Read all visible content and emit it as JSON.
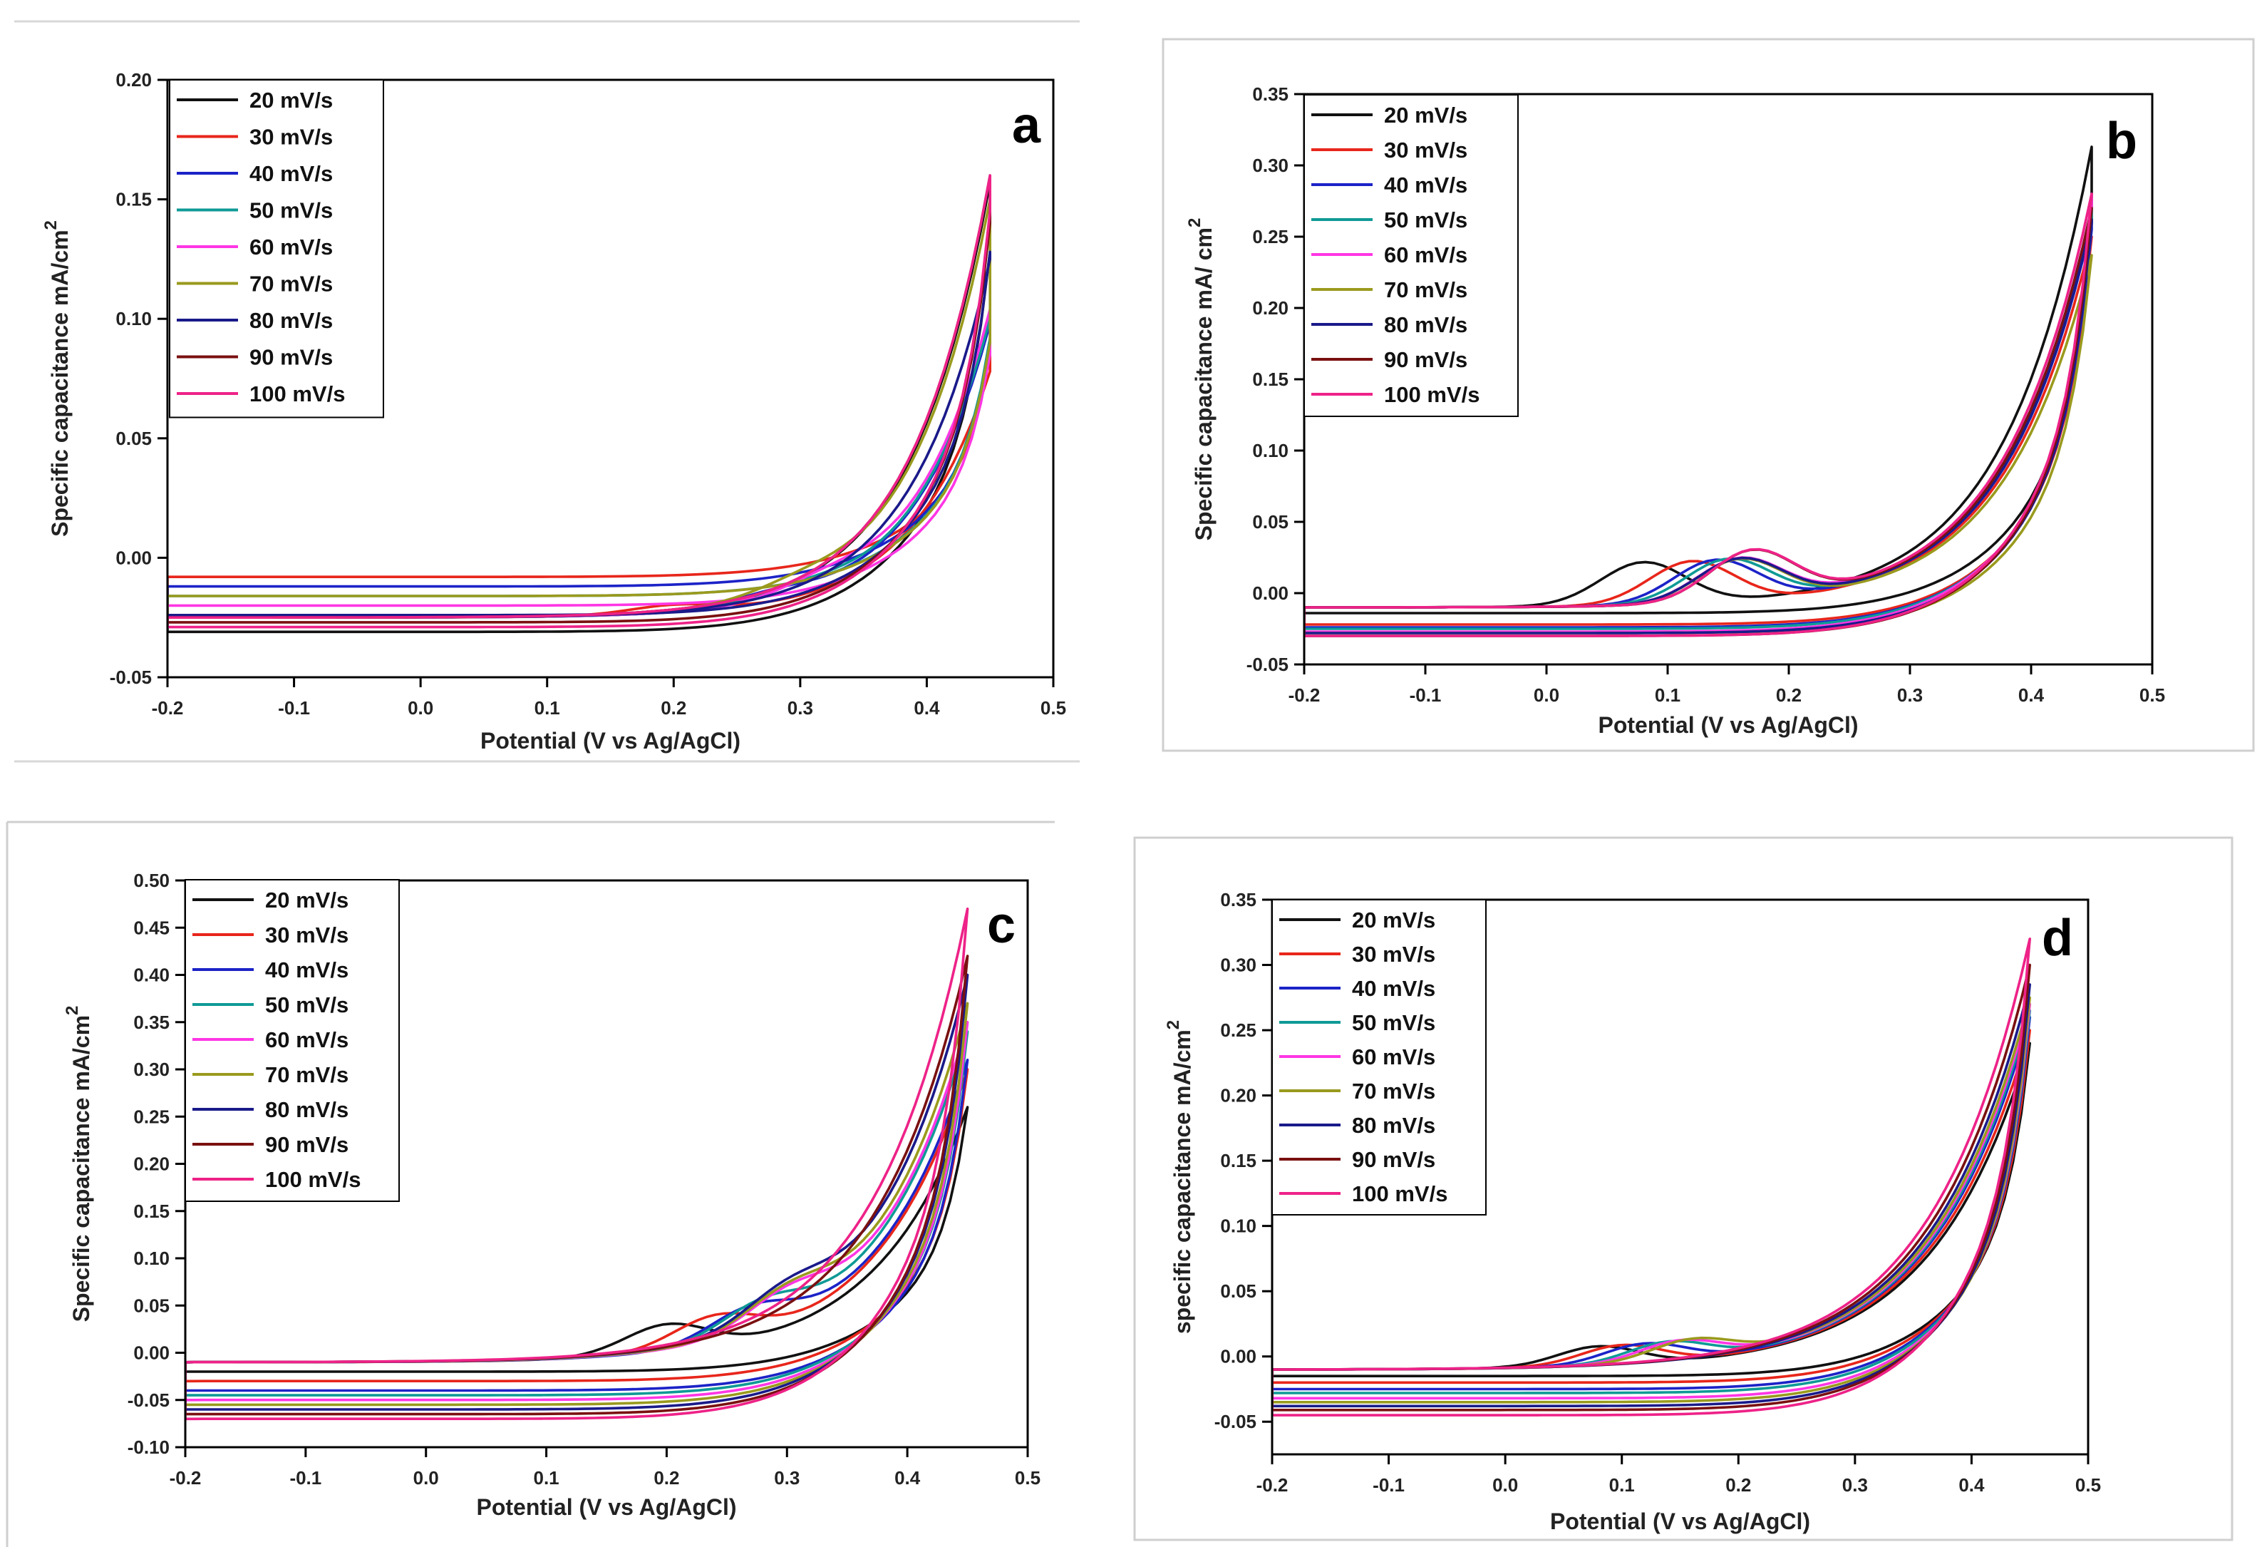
{
  "chart_data": [
    {
      "type": "line",
      "panel_label": "a",
      "xlabel": "Potential (V vs Ag/AgCl)",
      "ylabel": "Specific capacitance mA/cm",
      "ylabel_sup": "2",
      "xlim": [
        -0.2,
        0.5
      ],
      "ylim": [
        -0.05,
        0.2
      ],
      "xticks": [
        "-0.2",
        "-0.1",
        "0.0",
        "0.1",
        "0.2",
        "0.3",
        "0.4",
        "0.5"
      ],
      "yticks": [
        "-0.05",
        "0.00",
        "0.05",
        "0.10",
        "0.15",
        "0.20"
      ],
      "legend_position": "top-left",
      "legend": [
        "20 mV/s",
        "30 mV/s",
        "40 mV/s",
        "50 mV/s",
        "60 mV/s",
        "70 mV/s",
        "80 mV/s",
        "90 mV/s",
        "100 mV/s"
      ],
      "scan_rates_mV_s": [
        20,
        30,
        40,
        50,
        60,
        70,
        80,
        90,
        100
      ],
      "peak_current": [
        0.157,
        0.078,
        0.098,
        0.1,
        0.104,
        0.15,
        0.125,
        0.16,
        0.16
      ],
      "return_current": [
        0.128,
        0.085,
        0.09,
        0.092,
        0.085,
        0.09,
        0.128,
        0.14,
        0.145
      ],
      "cathodic_base": [
        -0.031,
        -0.008,
        -0.012,
        -0.016,
        -0.02,
        -0.016,
        -0.024,
        -0.027,
        -0.029
      ],
      "hump": [
        [
          0.0,
          0.0
        ],
        [
          0.2,
          0.0035
        ],
        [
          0.28,
          0.004
        ],
        [
          0.3,
          0.004
        ],
        [
          0.32,
          0.005
        ],
        [
          0.3,
          0.004
        ],
        [
          0.0,
          0.0
        ],
        [
          0.0,
          0.0
        ],
        [
          0.0,
          0.0
        ]
      ],
      "start_current": -0.025,
      "grow_k": 16,
      "x_start": -0.2,
      "vertex_potential": 0.45
    },
    {
      "type": "line",
      "panel_label": "b",
      "xlabel": "Potential (V vs Ag/AgCl)",
      "ylabel": "Specific capacitance mA/ cm",
      "ylabel_sup": "2",
      "xlim": [
        -0.2,
        0.5
      ],
      "ylim": [
        -0.05,
        0.35
      ],
      "xticks": [
        "-0.2",
        "-0.1",
        "0.0",
        "0.1",
        "0.2",
        "0.3",
        "0.4",
        "0.5"
      ],
      "yticks": [
        "-0.05",
        "0.00",
        "0.05",
        "0.10",
        "0.15",
        "0.20",
        "0.25",
        "0.30",
        "0.35"
      ],
      "legend_position": "top-left",
      "legend": [
        "20 mV/s",
        "30 mV/s",
        "40 mV/s",
        "50 mV/s",
        "60 mV/s",
        "70 mV/s",
        "80 mV/s",
        "90 mV/s",
        "100 mV/s"
      ],
      "scan_rates_mV_s": [
        20,
        30,
        40,
        50,
        60,
        70,
        80,
        90,
        100
      ],
      "peak_current": [
        0.313,
        0.25,
        0.26,
        0.27,
        0.28,
        0.237,
        0.262,
        0.27,
        0.28
      ],
      "return_current": [
        0.26,
        0.25,
        0.255,
        0.26,
        0.27,
        0.237,
        0.26,
        0.27,
        0.28
      ],
      "cathodic_base": [
        -0.014,
        -0.022,
        -0.024,
        -0.025,
        -0.027,
        -0.028,
        -0.028,
        -0.03,
        -0.03
      ],
      "hump": [
        [
          0.08,
          0.03
        ],
        [
          0.12,
          0.03
        ],
        [
          0.14,
          0.03
        ],
        [
          0.15,
          0.03
        ],
        [
          0.16,
          0.03
        ],
        [
          0.16,
          0.03
        ],
        [
          0.16,
          0.03
        ],
        [
          0.17,
          0.035
        ],
        [
          0.17,
          0.035
        ]
      ],
      "start_current": -0.01,
      "grow_k": 14,
      "x_start": -0.2,
      "vertex_potential": 0.45
    },
    {
      "type": "line",
      "panel_label": "c",
      "xlabel": "Potential (V vs Ag/AgCl)",
      "ylabel": "Specific capacitance mA/cm",
      "ylabel_sup": "2",
      "xlim": [
        -0.2,
        0.5
      ],
      "ylim": [
        -0.1,
        0.5
      ],
      "xticks": [
        "-0.2",
        "-0.1",
        "0.0",
        "0.1",
        "0.2",
        "0.3",
        "0.4",
        "0.5"
      ],
      "yticks": [
        "-0.10",
        "-0.05",
        "0.00",
        "0.05",
        "0.10",
        "0.15",
        "0.20",
        "0.25",
        "0.30",
        "0.35",
        "0.40",
        "0.45",
        "0.50"
      ],
      "legend_position": "top-left",
      "legend": [
        "20 mV/s",
        "30 mV/s",
        "40 mV/s",
        "50 mV/s",
        "60 mV/s",
        "70 mV/s",
        "80 mV/s",
        "90 mV/s",
        "100 mV/s"
      ],
      "scan_rates_mV_s": [
        20,
        30,
        40,
        50,
        60,
        70,
        80,
        90,
        100
      ],
      "peak_current": [
        0.26,
        0.3,
        0.31,
        0.34,
        0.35,
        0.37,
        0.4,
        0.42,
        0.47
      ],
      "return_current": [
        0.26,
        0.3,
        0.31,
        0.34,
        0.35,
        0.37,
        0.4,
        0.42,
        0.47
      ],
      "cathodic_base": [
        -0.02,
        -0.03,
        -0.04,
        -0.045,
        -0.05,
        -0.055,
        -0.06,
        -0.065,
        -0.07
      ],
      "hump": [
        [
          0.2,
          0.03
        ],
        [
          0.24,
          0.03
        ],
        [
          0.27,
          0.03
        ],
        [
          0.28,
          0.03
        ],
        [
          0.3,
          0.03
        ],
        [
          0.3,
          0.03
        ],
        [
          0.3,
          0.03
        ],
        [
          0.0,
          0.0
        ],
        [
          0.0,
          0.0
        ]
      ],
      "start_current": -0.01,
      "grow_k": 13,
      "x_start": -0.2,
      "vertex_potential": 0.45
    },
    {
      "type": "line",
      "panel_label": "d",
      "xlabel": "Potential (V vs Ag/AgCl)",
      "ylabel": "specific capacitance mA/cm",
      "ylabel_sup": "2",
      "xlim": [
        -0.2,
        0.5
      ],
      "ylim": [
        -0.075,
        0.35
      ],
      "xticks": [
        "-0.2",
        "-0.1",
        "0.0",
        "0.1",
        "0.2",
        "0.3",
        "0.4",
        "0.5"
      ],
      "yticks": [
        "-0.05",
        "0.00",
        "0.05",
        "0.10",
        "0.15",
        "0.20",
        "0.25",
        "0.30",
        "0.35"
      ],
      "legend_position": "top-left",
      "legend": [
        "20 mV/s",
        "30 mV/s",
        "40 mV/s",
        "50 mV/s",
        "60 mV/s",
        "70 mV/s",
        "80 mV/s",
        "90 mV/s",
        "100 mV/s"
      ],
      "scan_rates_mV_s": [
        20,
        30,
        40,
        50,
        60,
        70,
        80,
        90,
        100
      ],
      "peak_current": [
        0.24,
        0.25,
        0.26,
        0.265,
        0.27,
        0.275,
        0.285,
        0.3,
        0.32
      ],
      "return_current": [
        0.24,
        0.25,
        0.26,
        0.265,
        0.27,
        0.275,
        0.285,
        0.3,
        0.32
      ],
      "cathodic_base": [
        -0.015,
        -0.02,
        -0.025,
        -0.028,
        -0.032,
        -0.035,
        -0.038,
        -0.041,
        -0.045
      ],
      "hump": [
        [
          0.08,
          0.015
        ],
        [
          0.1,
          0.015
        ],
        [
          0.12,
          0.015
        ],
        [
          0.14,
          0.015
        ],
        [
          0.15,
          0.015
        ],
        [
          0.16,
          0.015
        ],
        [
          0.0,
          0.0
        ],
        [
          0.0,
          0.0
        ],
        [
          0.0,
          0.0
        ]
      ],
      "start_current": -0.01,
      "grow_k": 12,
      "x_start": -0.2,
      "vertex_potential": 0.45
    }
  ],
  "series_colors": [
    "#111111",
    "#e8261b",
    "#1c23c7",
    "#0f9a96",
    "#ff36e4",
    "#9a9a1e",
    "#1a1a8a",
    "#7a1010",
    "#ee2288"
  ]
}
